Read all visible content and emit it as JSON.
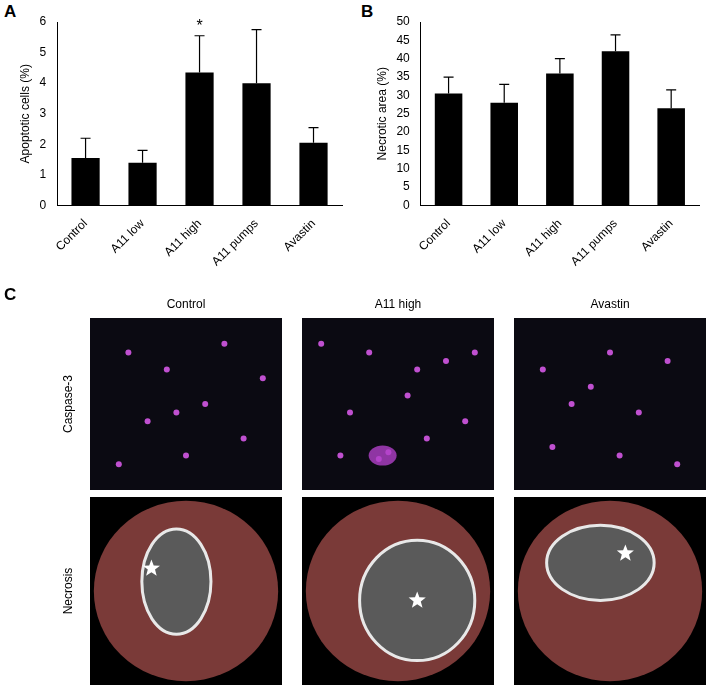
{
  "chart_data": [
    {
      "panel": "A",
      "type": "bar",
      "y_label": "Apoptotic cells (%)",
      "categories": [
        "Control",
        "A11 low",
        "A11 high",
        "A11 pumps",
        "Avastin"
      ],
      "values": [
        1.55,
        1.4,
        4.35,
        4.0,
        2.05
      ],
      "errors": [
        0.65,
        0.4,
        1.2,
        1.75,
        0.5
      ],
      "annotations": [
        {
          "category": "A11 high",
          "text": "*"
        }
      ],
      "color": "#000000",
      "ylim": [
        0,
        6
      ],
      "yticks": [
        0,
        1,
        2,
        3,
        4,
        5,
        6
      ],
      "grid": false
    },
    {
      "panel": "B",
      "type": "bar",
      "y_label": "Necrotic area (%)",
      "categories": [
        "Control",
        "A11 low",
        "A11 high",
        "A11 pumps",
        "Avastin"
      ],
      "values": [
        30.5,
        28.0,
        36.0,
        42.0,
        26.5
      ],
      "errors": [
        4.5,
        5.0,
        4.0,
        4.5,
        5.0
      ],
      "color": "#000000",
      "ylim": [
        0,
        50
      ],
      "yticks": [
        0,
        5,
        10,
        15,
        20,
        25,
        30,
        35,
        40,
        45,
        50
      ],
      "grid": false
    }
  ],
  "image_panel": {
    "panel": "C",
    "columns": [
      "Control",
      "A11 high",
      "Avastin"
    ],
    "rows": [
      "Caspase-3",
      "Necrosis"
    ]
  }
}
